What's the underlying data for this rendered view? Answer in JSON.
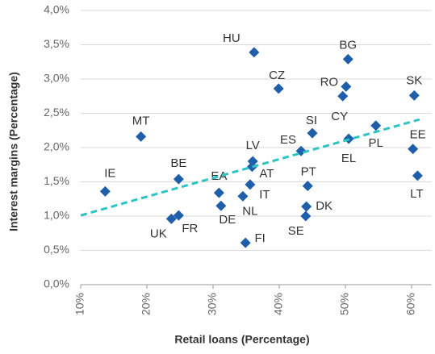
{
  "chart_data": {
    "type": "scatter",
    "xlabel": "Retail loans  (Percentage)",
    "ylabel": "Interest margins (Percentage)",
    "color": "#1f5fa9",
    "labels": [
      "IE",
      "MT",
      "BE",
      "UK",
      "FR",
      "EA",
      "DE",
      "HU",
      "LV",
      "AT",
      "IT",
      "NL",
      "FI",
      "CZ",
      "SI",
      "ES",
      "PT",
      "DK",
      "SE",
      "BG",
      "RO",
      "CY",
      "EL",
      "PL",
      "SK",
      "EE",
      "LT"
    ],
    "x": [
      13.7,
      19.1,
      24.8,
      23.7,
      24.8,
      30.9,
      31.2,
      36.2,
      36.0,
      35.9,
      35.6,
      34.5,
      34.9,
      39.9,
      45.0,
      43.3,
      44.3,
      44.1,
      44.0,
      50.4,
      50.1,
      49.6,
      50.5,
      54.6,
      60.4,
      60.2,
      60.9
    ],
    "values": [
      1.36,
      2.16,
      1.54,
      0.96,
      1.01,
      1.34,
      1.15,
      3.39,
      1.8,
      1.72,
      1.46,
      1.29,
      0.61,
      2.86,
      2.21,
      1.95,
      1.44,
      1.14,
      1.0,
      3.29,
      2.89,
      2.75,
      2.13,
      2.32,
      2.76,
      1.98,
      1.59
    ],
    "trendline": {
      "color": "#2ec4c4",
      "x": [
        10,
        61.2
      ],
      "values": [
        1.01,
        2.41
      ]
    },
    "xlim": [
      10,
      63
    ],
    "ylim": [
      0,
      4
    ],
    "xticks": [
      {
        "value": 10,
        "label": "10%"
      },
      {
        "value": 20,
        "label": "20%"
      },
      {
        "value": 30,
        "label": "30%"
      },
      {
        "value": 40,
        "label": "40%"
      },
      {
        "value": 50,
        "label": "50%"
      },
      {
        "value": 60,
        "label": "60%"
      }
    ],
    "yticks": [
      {
        "value": 0,
        "label": "0,0%"
      },
      {
        "value": 0.5,
        "label": "0,5%"
      },
      {
        "value": 1,
        "label": "1,0%"
      },
      {
        "value": 1.5,
        "label": "1,5%"
      },
      {
        "value": 2,
        "label": "2,0%"
      },
      {
        "value": 2.5,
        "label": "2,5%"
      },
      {
        "value": 3,
        "label": "3,0%"
      },
      {
        "value": 3.5,
        "label": "3,5%"
      },
      {
        "value": 4,
        "label": "4,0%"
      }
    ],
    "grid": true
  }
}
